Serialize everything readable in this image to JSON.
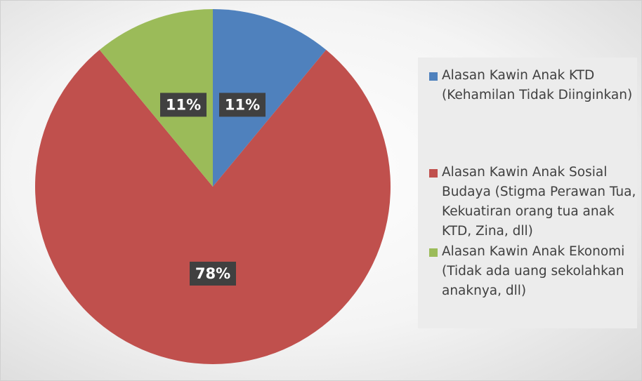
{
  "chart_data": {
    "type": "pie",
    "categories": [
      "Alasan Kawin Anak KTD (Kehamilan Tidak Diinginkan)",
      "Alasan Kawin Anak Sosial Budaya (Stigma Perawan Tua, Kekuatiran orang tua anak KTD, Zina, dll)",
      "Alasan Kawin Anak Ekonomi (Tidak ada uang sekolahkan anaknya, dll)"
    ],
    "values": [
      11,
      78,
      11
    ],
    "value_labels": [
      "11%",
      "78%",
      "11%"
    ],
    "colors": [
      "#4f81bd",
      "#c0504d",
      "#9bbb59"
    ],
    "legend": "right"
  }
}
